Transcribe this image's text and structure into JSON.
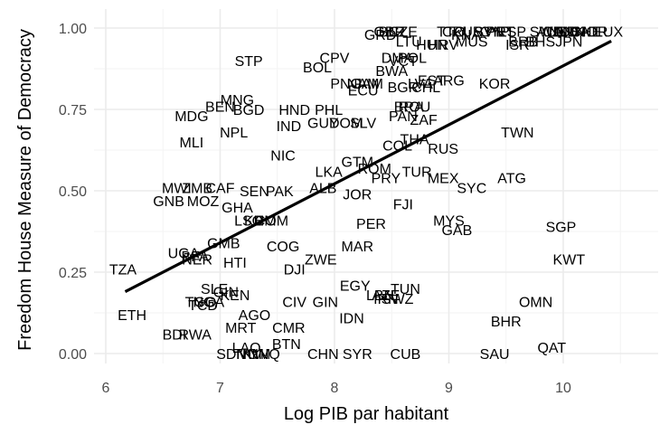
{
  "chart_data": {
    "type": "scatter",
    "title": "",
    "xlabel": "Log PIB par habitant",
    "ylabel": "Freedom House Measure of Democracy",
    "xlim": [
      5.8,
      10.85
    ],
    "ylim": [
      -0.05,
      1.06
    ],
    "x_ticks": [
      6,
      7,
      8,
      9,
      10
    ],
    "x_tick_labels": [
      "6",
      "7",
      "8",
      "9",
      "10"
    ],
    "y_ticks": [
      0.0,
      0.25,
      0.5,
      0.75,
      1.0
    ],
    "y_tick_labels": [
      "0.00",
      "0.25",
      "0.50",
      "0.75",
      "1.00"
    ],
    "grid": true,
    "legend": "none",
    "points_as_text_labels": true,
    "regression_line": {
      "x": [
        6.17,
        10.42
      ],
      "y": [
        0.19,
        0.96
      ]
    },
    "points": [
      {
        "label": "GRD",
        "x": 8.4,
        "y": 0.98
      },
      {
        "label": "CZE",
        "x": 8.6,
        "y": 0.99
      },
      {
        "label": "BLZ",
        "x": 8.5,
        "y": 0.99
      },
      {
        "label": "GBR",
        "x": 8.48,
        "y": 0.99
      },
      {
        "label": "LTU",
        "x": 8.65,
        "y": 0.96
      },
      {
        "label": "HUN",
        "x": 8.85,
        "y": 0.95
      },
      {
        "label": "HRV",
        "x": 8.95,
        "y": 0.95
      },
      {
        "label": "TTO",
        "x": 9.02,
        "y": 0.99
      },
      {
        "label": "KNA",
        "x": 9.15,
        "y": 0.98
      },
      {
        "label": "MUS",
        "x": 9.2,
        "y": 0.96
      },
      {
        "label": "ISR",
        "x": 9.6,
        "y": 0.95
      },
      {
        "label": "BRB",
        "x": 9.65,
        "y": 0.96
      },
      {
        "label": "BHS",
        "x": 9.8,
        "y": 0.96
      },
      {
        "label": "JPN",
        "x": 10.05,
        "y": 0.96
      },
      {
        "label": "LUX",
        "x": 10.4,
        "y": 0.99
      },
      {
        "label": "USA",
        "x": 10.1,
        "y": 0.99
      },
      {
        "label": "CAN",
        "x": 9.95,
        "y": 0.99
      },
      {
        "label": "AUS",
        "x": 9.9,
        "y": 0.99
      },
      {
        "label": "NOR",
        "x": 10.25,
        "y": 0.99
      },
      {
        "label": "CHE",
        "x": 10.2,
        "y": 0.99
      },
      {
        "label": "NLD",
        "x": 10.0,
        "y": 0.99
      },
      {
        "label": "SWE",
        "x": 9.85,
        "y": 0.99
      },
      {
        "label": "DNK",
        "x": 10.05,
        "y": 0.99
      },
      {
        "label": "PRT",
        "x": 9.45,
        "y": 0.99
      },
      {
        "label": "ESP",
        "x": 9.55,
        "y": 0.99
      },
      {
        "label": "SVN",
        "x": 9.35,
        "y": 0.99
      },
      {
        "label": "CYP",
        "x": 9.4,
        "y": 0.99
      },
      {
        "label": "URY",
        "x": 9.25,
        "y": 0.99
      },
      {
        "label": "CRI",
        "x": 9.05,
        "y": 0.99
      },
      {
        "label": "DMA",
        "x": 8.55,
        "y": 0.91
      },
      {
        "label": "POL",
        "x": 8.68,
        "y": 0.91
      },
      {
        "label": "VCT",
        "x": 8.6,
        "y": 0.9
      },
      {
        "label": "BWA",
        "x": 8.5,
        "y": 0.87
      },
      {
        "label": "LVA",
        "x": 8.75,
        "y": 0.83
      },
      {
        "label": "EST",
        "x": 8.85,
        "y": 0.84
      },
      {
        "label": "ARG",
        "x": 9.0,
        "y": 0.84
      },
      {
        "label": "KOR",
        "x": 9.4,
        "y": 0.83
      },
      {
        "label": "BGR",
        "x": 8.6,
        "y": 0.82
      },
      {
        "label": "CHL",
        "x": 8.8,
        "y": 0.82
      },
      {
        "label": "BRA",
        "x": 8.65,
        "y": 0.76
      },
      {
        "label": "ROU",
        "x": 8.7,
        "y": 0.76
      },
      {
        "label": "PAN",
        "x": 8.6,
        "y": 0.73
      },
      {
        "label": "ZAF",
        "x": 8.78,
        "y": 0.72
      },
      {
        "label": "STP",
        "x": 7.25,
        "y": 0.9
      },
      {
        "label": "CPV",
        "x": 8.0,
        "y": 0.91
      },
      {
        "label": "BOL",
        "x": 7.85,
        "y": 0.88
      },
      {
        "label": "PNG",
        "x": 8.1,
        "y": 0.83
      },
      {
        "label": "NAM",
        "x": 8.25,
        "y": 0.83
      },
      {
        "label": "JAM",
        "x": 8.3,
        "y": 0.83
      },
      {
        "label": "ECU",
        "x": 8.25,
        "y": 0.81
      },
      {
        "label": "MNG",
        "x": 7.15,
        "y": 0.78
      },
      {
        "label": "BEN",
        "x": 7.0,
        "y": 0.76
      },
      {
        "label": "BGD",
        "x": 7.25,
        "y": 0.75
      },
      {
        "label": "HND",
        "x": 7.65,
        "y": 0.75
      },
      {
        "label": "PHL",
        "x": 7.95,
        "y": 0.75
      },
      {
        "label": "MDG",
        "x": 6.75,
        "y": 0.73
      },
      {
        "label": "IND",
        "x": 7.6,
        "y": 0.7
      },
      {
        "label": "GUY",
        "x": 7.9,
        "y": 0.71
      },
      {
        "label": "DOM",
        "x": 8.1,
        "y": 0.71
      },
      {
        "label": "SLV",
        "x": 8.25,
        "y": 0.71
      },
      {
        "label": "NPL",
        "x": 7.12,
        "y": 0.68
      },
      {
        "label": "MLI",
        "x": 6.75,
        "y": 0.65
      },
      {
        "label": "NIC",
        "x": 7.55,
        "y": 0.61
      },
      {
        "label": "TWN",
        "x": 9.6,
        "y": 0.68
      },
      {
        "label": "COL",
        "x": 8.55,
        "y": 0.64
      },
      {
        "label": "THA",
        "x": 8.7,
        "y": 0.66
      },
      {
        "label": "RUS",
        "x": 8.95,
        "y": 0.63
      },
      {
        "label": "GTM",
        "x": 8.2,
        "y": 0.59
      },
      {
        "label": "ROM",
        "x": 8.35,
        "y": 0.57
      },
      {
        "label": "TUR",
        "x": 8.72,
        "y": 0.56
      },
      {
        "label": "LKA",
        "x": 7.95,
        "y": 0.56
      },
      {
        "label": "PRY",
        "x": 8.45,
        "y": 0.54
      },
      {
        "label": "MEX",
        "x": 8.95,
        "y": 0.54
      },
      {
        "label": "ATG",
        "x": 9.55,
        "y": 0.54
      },
      {
        "label": "SYC",
        "x": 9.2,
        "y": 0.51
      },
      {
        "label": "ALB",
        "x": 7.9,
        "y": 0.51
      },
      {
        "label": "JOR",
        "x": 8.2,
        "y": 0.49
      },
      {
        "label": "FJI",
        "x": 8.6,
        "y": 0.46
      },
      {
        "label": "MWI",
        "x": 6.62,
        "y": 0.51
      },
      {
        "label": "ZMB",
        "x": 6.8,
        "y": 0.51
      },
      {
        "label": "CAF",
        "x": 7.0,
        "y": 0.51
      },
      {
        "label": "SEN",
        "x": 7.3,
        "y": 0.5
      },
      {
        "label": "PAK",
        "x": 7.52,
        "y": 0.5
      },
      {
        "label": "GNB",
        "x": 6.55,
        "y": 0.47
      },
      {
        "label": "MOZ",
        "x": 6.85,
        "y": 0.47
      },
      {
        "label": "GHA",
        "x": 7.15,
        "y": 0.45
      },
      {
        "label": "LSO",
        "x": 7.25,
        "y": 0.41
      },
      {
        "label": "COM",
        "x": 7.45,
        "y": 0.41
      },
      {
        "label": "KHM",
        "x": 7.35,
        "y": 0.41
      },
      {
        "label": "PER",
        "x": 8.32,
        "y": 0.4
      },
      {
        "label": "MYS",
        "x": 9.0,
        "y": 0.41
      },
      {
        "label": "GAB",
        "x": 9.07,
        "y": 0.38
      },
      {
        "label": "SGP",
        "x": 9.98,
        "y": 0.39
      },
      {
        "label": "KWT",
        "x": 10.05,
        "y": 0.29
      },
      {
        "label": "GMB",
        "x": 7.03,
        "y": 0.34
      },
      {
        "label": "COG",
        "x": 7.55,
        "y": 0.33
      },
      {
        "label": "MAR",
        "x": 8.2,
        "y": 0.33
      },
      {
        "label": "UGA",
        "x": 6.68,
        "y": 0.31
      },
      {
        "label": "BFA",
        "x": 6.78,
        "y": 0.3
      },
      {
        "label": "NER",
        "x": 6.8,
        "y": 0.29
      },
      {
        "label": "TZA",
        "x": 6.15,
        "y": 0.26
      },
      {
        "label": "HTI",
        "x": 7.13,
        "y": 0.28
      },
      {
        "label": "ZWE",
        "x": 7.88,
        "y": 0.29
      },
      {
        "label": "DJI",
        "x": 7.65,
        "y": 0.26
      },
      {
        "label": "SLE",
        "x": 6.95,
        "y": 0.2
      },
      {
        "label": "KEN",
        "x": 7.13,
        "y": 0.18
      },
      {
        "label": "GIN",
        "x": 7.05,
        "y": 0.19
      },
      {
        "label": "NGA",
        "x": 6.9,
        "y": 0.16
      },
      {
        "label": "TGO",
        "x": 6.83,
        "y": 0.16
      },
      {
        "label": "TCD",
        "x": 6.85,
        "y": 0.15
      },
      {
        "label": "EGY",
        "x": 8.18,
        "y": 0.21
      },
      {
        "label": "LBN",
        "x": 8.4,
        "y": 0.18
      },
      {
        "label": "IRN",
        "x": 8.45,
        "y": 0.17
      },
      {
        "label": "SWZ",
        "x": 8.55,
        "y": 0.17
      },
      {
        "label": "TUN",
        "x": 8.62,
        "y": 0.2
      },
      {
        "label": "AZE",
        "x": 8.45,
        "y": 0.18
      },
      {
        "label": "CIV",
        "x": 7.65,
        "y": 0.16
      },
      {
        "label": "GIN2",
        "x": 7.92,
        "y": 0.16
      },
      {
        "label": "IDN",
        "x": 8.15,
        "y": 0.11
      },
      {
        "label": "OMN",
        "x": 9.76,
        "y": 0.16
      },
      {
        "label": "BHR",
        "x": 9.5,
        "y": 0.1
      },
      {
        "label": "SAU",
        "x": 9.4,
        "y": 0.0
      },
      {
        "label": "QAT",
        "x": 9.9,
        "y": 0.02
      },
      {
        "label": "ETH",
        "x": 6.23,
        "y": 0.12
      },
      {
        "label": "BDI",
        "x": 6.6,
        "y": 0.06
      },
      {
        "label": "RWA",
        "x": 6.78,
        "y": 0.06
      },
      {
        "label": "AGO",
        "x": 7.3,
        "y": 0.12
      },
      {
        "label": "MRT",
        "x": 7.18,
        "y": 0.08
      },
      {
        "label": "CMR",
        "x": 7.6,
        "y": 0.08
      },
      {
        "label": "LAO",
        "x": 7.23,
        "y": 0.02
      },
      {
        "label": "BTN",
        "x": 7.58,
        "y": 0.03
      },
      {
        "label": "SDN",
        "x": 7.1,
        "y": 0.0
      },
      {
        "label": "TKM",
        "x": 7.25,
        "y": 0.0
      },
      {
        "label": "VNM",
        "x": 7.3,
        "y": 0.0
      },
      {
        "label": "GNQ",
        "x": 7.38,
        "y": 0.0
      },
      {
        "label": "CHN",
        "x": 7.9,
        "y": 0.0
      },
      {
        "label": "SYR",
        "x": 8.2,
        "y": 0.0
      },
      {
        "label": "CUB",
        "x": 8.62,
        "y": 0.0
      }
    ]
  }
}
